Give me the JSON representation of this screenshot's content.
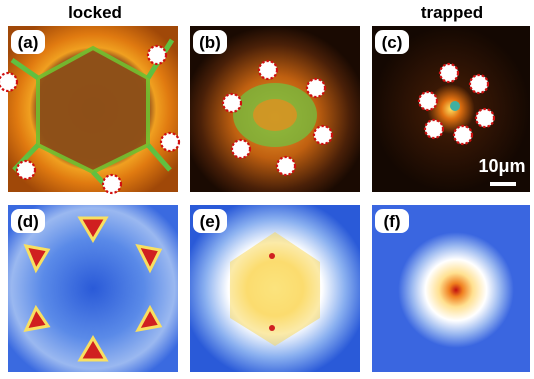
{
  "headers": [
    "locked",
    "trapped"
  ],
  "panels": [
    {
      "label": "(a)"
    },
    {
      "label": "(b)"
    },
    {
      "label": "(c)"
    },
    {
      "label": "(d)"
    },
    {
      "label": "(e)"
    },
    {
      "label": "(f)"
    }
  ],
  "scale_bar": "10μm"
}
